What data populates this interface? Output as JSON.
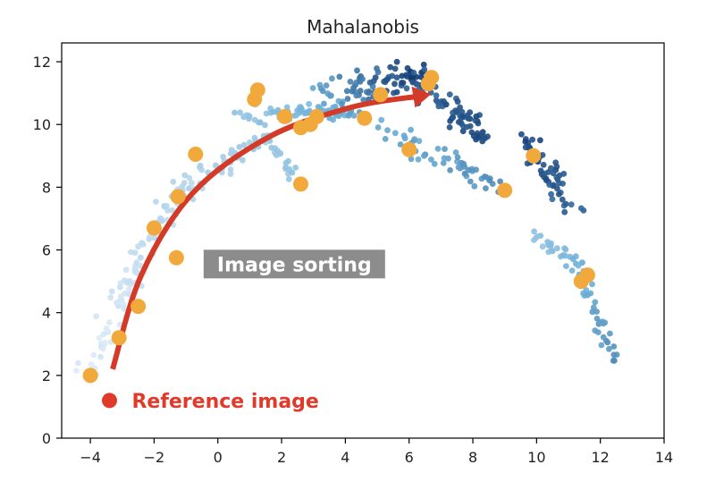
{
  "chart_data": {
    "type": "scatter",
    "title": "Mahalanobis",
    "xlim": [
      -4.9,
      14
    ],
    "ylim": [
      0,
      12.6
    ],
    "xticks": [
      -4,
      -2,
      0,
      2,
      4,
      6,
      8,
      10,
      12,
      14
    ],
    "xtick_labels": [
      "−4",
      "−2",
      "0",
      "2",
      "4",
      "6",
      "8",
      "10",
      "12",
      "14"
    ],
    "yticks": [
      0,
      2,
      4,
      6,
      8,
      10,
      12
    ],
    "ytick_labels": [
      "0",
      "2",
      "4",
      "6",
      "8",
      "10",
      "12"
    ],
    "grid": false,
    "colors": {
      "gradient_light": "#deebf7",
      "gradient_mid": "#6baed6",
      "gradient_dark": "#08306b",
      "sorted_points": "#f2a93b",
      "reference": "#e03a2a",
      "arrow": "#d43a28",
      "label_box": "#8c8c8c"
    },
    "series": [
      {
        "points": [
          {
            "x": -4.0,
            "y": 2.0
          },
          {
            "x": -3.1,
            "y": 3.2
          },
          {
            "x": -2.5,
            "y": 4.2
          },
          {
            "x": -1.3,
            "y": 5.75
          },
          {
            "x": -2.0,
            "y": 6.7
          },
          {
            "x": -1.25,
            "y": 7.7
          },
          {
            "x": -0.7,
            "y": 9.05
          },
          {
            "x": 1.15,
            "y": 10.8
          },
          {
            "x": 1.25,
            "y": 11.1
          },
          {
            "x": 2.1,
            "y": 10.25
          },
          {
            "x": 2.6,
            "y": 9.9
          },
          {
            "x": 2.9,
            "y": 10.0
          },
          {
            "x": 3.1,
            "y": 10.25
          },
          {
            "x": 2.6,
            "y": 8.1
          },
          {
            "x": 4.6,
            "y": 10.2
          },
          {
            "x": 5.1,
            "y": 10.95
          },
          {
            "x": 6.0,
            "y": 9.2
          },
          {
            "x": 6.6,
            "y": 11.3
          },
          {
            "x": 6.7,
            "y": 11.5
          },
          {
            "x": 9.0,
            "y": 7.9
          },
          {
            "x": 9.9,
            "y": 9.0
          },
          {
            "x": 11.4,
            "y": 5.0
          },
          {
            "x": 11.6,
            "y": 5.2
          }
        ]
      },
      {
        "points": [
          {
            "x": -3.4,
            "y": 1.2
          }
        ]
      }
    ],
    "annotations": [
      {
        "text": "Reference image",
        "x": -2.7,
        "y": 1.2,
        "color": "#e03a2a"
      },
      {
        "text": "Image sorting",
        "x": 2.4,
        "y": 5.55,
        "box": true
      }
    ],
    "arrow": {
      "points": [
        {
          "x": -3.3,
          "y": 2.2
        },
        {
          "x": -2.4,
          "y": 5.2
        },
        {
          "x": -0.8,
          "y": 7.8
        },
        {
          "x": 1.6,
          "y": 9.6
        },
        {
          "x": 4.2,
          "y": 10.55
        },
        {
          "x": 6.3,
          "y": 10.9
        }
      ]
    }
  }
}
